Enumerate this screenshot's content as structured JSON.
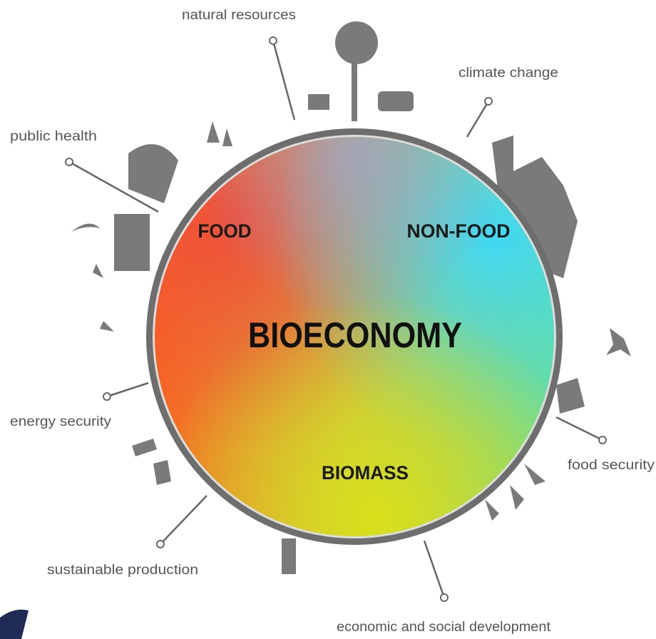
{
  "center": {
    "title": "BIOECONOMY"
  },
  "sectors": [
    "FOOD",
    "NON-FOOD",
    "BIOMASS"
  ],
  "callouts": [
    "natural resources",
    "climate change",
    "public health",
    "energy security",
    "food security",
    "sustainable production",
    "economic and social development"
  ]
}
